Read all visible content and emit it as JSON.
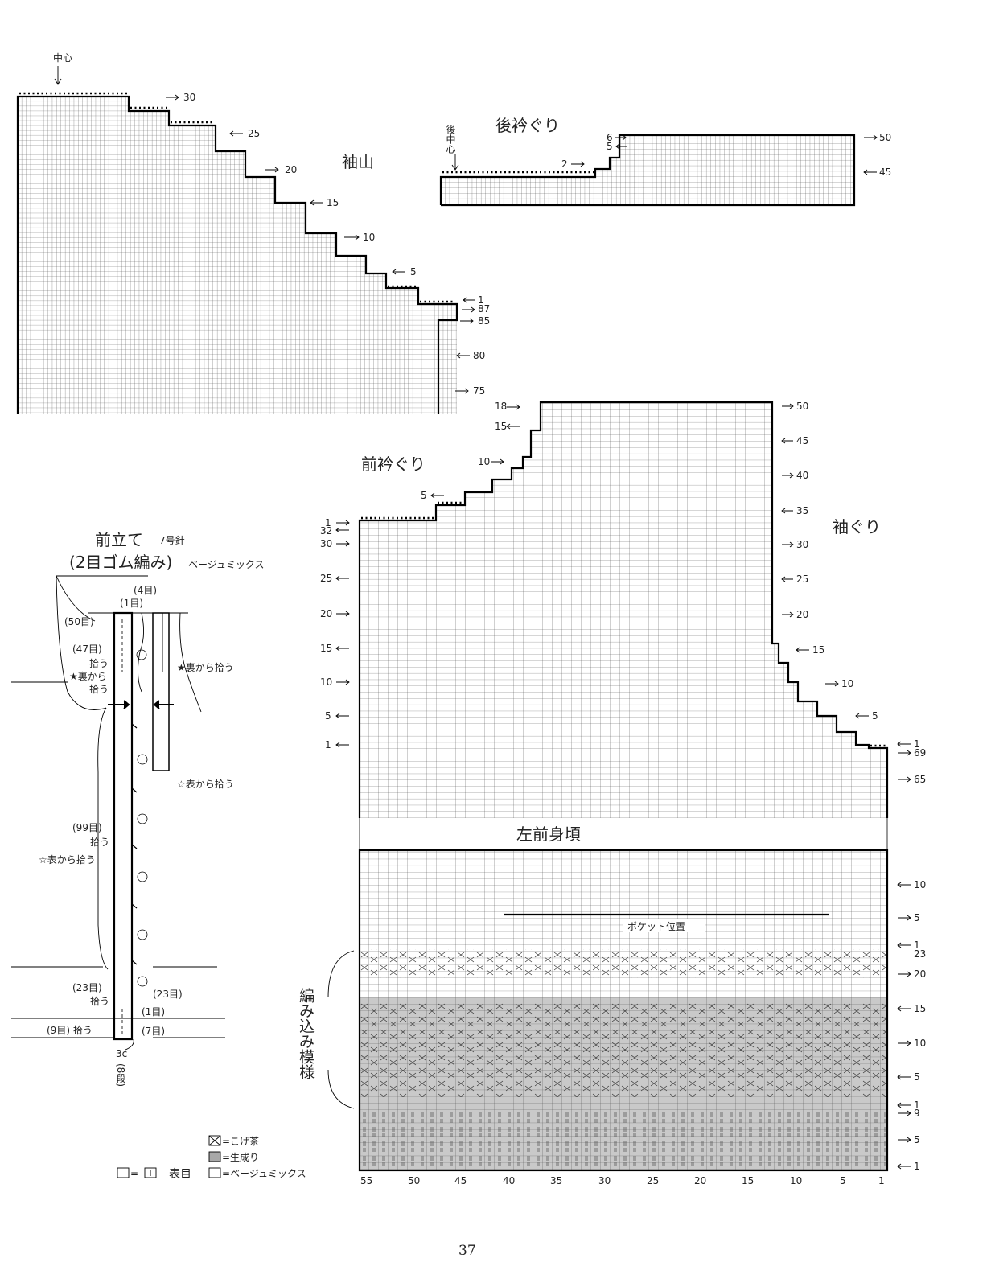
{
  "labels": {
    "center": "中心",
    "sleeve_cap": "袖山",
    "back_neck": "後衿ぐり",
    "back_center": "後中心",
    "front_neck": "前衿ぐり",
    "armhole": "袖ぐり",
    "left_front": "左前身頃",
    "pocket": "ポケット位置",
    "colorwork": "編み込み模様",
    "page_number": "37"
  },
  "front_band": {
    "title": "前立て",
    "needle": "7号針",
    "stitch": "(2目ゴム編み)",
    "yarn": "ベージュミックス",
    "notes": {
      "st4": "(4目)",
      "st1_top": "(1目)",
      "st50": "(50目)",
      "st47": "(47目)",
      "pick": "拾う",
      "star_wrong": "★裏から拾う",
      "star_wrong_left": "★裏から",
      "pick_left": "拾う",
      "star_right": "★裏から拾う",
      "hollow_right": "☆表から拾う",
      "st99": "(99目)",
      "pick99": "拾う",
      "hollow99": "☆表から拾う",
      "st23l": "(23目)",
      "pick23": "拾う",
      "st23r": "(23目)",
      "st1_bot": "(1目)",
      "st9": "(9目) 拾う",
      "st7": "(7目)",
      "len": "3c",
      "rows": "(8段)"
    }
  },
  "legend": {
    "dark": "=こげ茶",
    "natural": "=生成り",
    "knit_eq": "=",
    "knit": "表目",
    "beige": "=ベージュミックス"
  },
  "sleeve_rows": {
    "r30": "30",
    "r25": "25",
    "r20": "20",
    "r15": "15",
    "r10": "10",
    "r5": "5",
    "r1": "1",
    "r87": "87",
    "r85": "85",
    "r80": "80",
    "r75": "75"
  },
  "back_rows": {
    "r6": "6",
    "r5": "5",
    "r2": "2",
    "r50": "50",
    "r45": "45"
  },
  "front_left_rows": {
    "r18": "18",
    "r15": "15",
    "r10": "10",
    "r5": "5",
    "r1": "1",
    "r32": "32",
    "l30": "30",
    "l25": "25",
    "l20": "20",
    "l15": "15",
    "l10": "10",
    "l5": "5",
    "l1": "1"
  },
  "front_right_rows": {
    "r50": "50",
    "r45": "45",
    "r40": "40",
    "r35": "35",
    "r30": "30",
    "r25": "25",
    "r20": "20",
    "a15": "15",
    "a10": "10",
    "a5": "5",
    "a1": "1",
    "a69": "69",
    "a65": "65"
  },
  "lower_rows": {
    "r10": "10",
    "r5": "5",
    "r1a": "1",
    "r23": "23",
    "r20": "20",
    "p15": "15",
    "p10": "10",
    "p5": "5",
    "r1b": "1",
    "r9": "9",
    "q5": "5",
    "q1": "1"
  },
  "col_numbers": [
    "55",
    "50",
    "45",
    "40",
    "35",
    "30",
    "25",
    "20",
    "15",
    "10",
    "5",
    "1"
  ]
}
